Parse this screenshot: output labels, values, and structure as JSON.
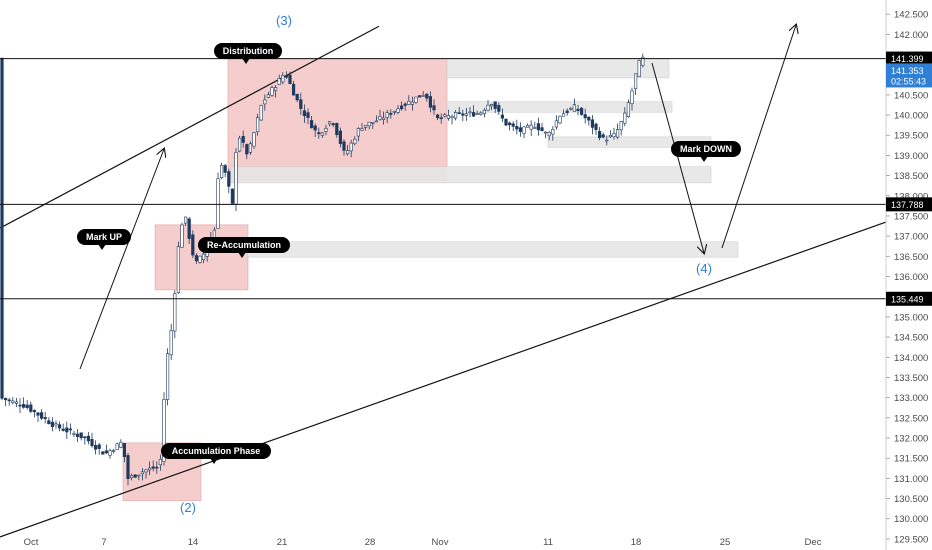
{
  "chart_data": {
    "type": "candlestick",
    "x_ticks": [
      "Oct",
      "7",
      "14",
      "21",
      "28",
      "Nov",
      "11",
      "18",
      "25",
      "Dec"
    ],
    "y_ticks": [
      "129.500",
      "130.000",
      "130.500",
      "131.000",
      "131.500",
      "132.000",
      "132.500",
      "133.000",
      "133.500",
      "134.000",
      "134.500",
      "135.000",
      "135.500",
      "136.000",
      "136.500",
      "137.000",
      "137.500",
      "138.000",
      "138.500",
      "139.000",
      "139.500",
      "140.000",
      "140.500",
      "141.000",
      "141.500",
      "142.000",
      "142.500"
    ],
    "ylim": [
      129.3,
      142.85
    ],
    "horizontal_levels": [
      {
        "value": 141.399,
        "label": "141.399",
        "style": "dark"
      },
      {
        "value": 137.788,
        "label": "137.788",
        "style": "dark"
      },
      {
        "value": 135.449,
        "label": "135.449",
        "style": "dark"
      }
    ],
    "current_price": {
      "value": 141.353,
      "label": "141.353",
      "countdown": "02:55:43",
      "color": "#2f7fd6"
    },
    "annotations": [
      {
        "text": "Distribution"
      },
      {
        "text": "Mark UP"
      },
      {
        "text": "Re-Accumulation"
      },
      {
        "text": "Accumulation Phase"
      },
      {
        "text": "Mark DOWN"
      }
    ],
    "wave_labels": [
      "(3)",
      "(2)",
      "(4)"
    ],
    "colors": {
      "bull": "#ffffff",
      "bear": "#1e3a5f",
      "zone_red": "#f2c1c1",
      "zone_grey": "#e6e6e6",
      "wave": "#2f7fd6"
    },
    "candles": []
  }
}
